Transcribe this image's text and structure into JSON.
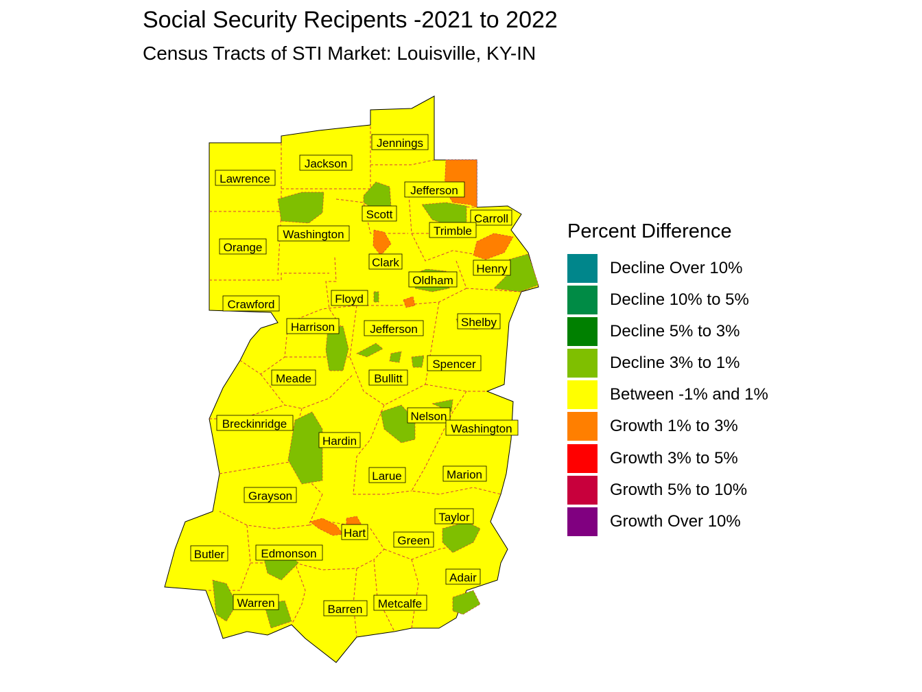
{
  "title": "Social Security Recipents -2021 to 2022",
  "subtitle": "Census Tracts of STI Market: Louisville, KY-IN",
  "legend": {
    "title": "Percent Difference",
    "items": [
      {
        "label": "Decline Over 10%",
        "color": "#00868B"
      },
      {
        "label": "Decline 10% to 5%",
        "color": "#008B45"
      },
      {
        "label": "Decline 5% to 3%",
        "color": "#008000"
      },
      {
        "label": "Decline 3% to 1%",
        "color": "#7FBF00"
      },
      {
        "label": "Between -1% and 1%",
        "color": "#FFFF00"
      },
      {
        "label": "Growth 1% to 3%",
        "color": "#FF7F00"
      },
      {
        "label": "Growth 3% to 5%",
        "color": "#FF0000"
      },
      {
        "label": "Growth 5% to 10%",
        "color": "#C8003C"
      },
      {
        "label": "Growth Over 10%",
        "color": "#800080"
      }
    ]
  },
  "colors": {
    "base_fill": "#FFFF00",
    "decline_fill": "#7FBF00",
    "growth_fill": "#FF7F00",
    "county_border": "#D43A3A",
    "outline": "#000000"
  },
  "counties": [
    "Jennings",
    "Jackson",
    "Lawrence",
    "Jefferson",
    "Scott",
    "Carroll",
    "Washington",
    "Trimble",
    "Orange",
    "Clark",
    "Henry",
    "Oldham",
    "Crawford",
    "Floyd",
    "Shelby",
    "Harrison",
    "Jefferson",
    "Spencer",
    "Meade",
    "Bullitt",
    "Nelson",
    "Breckinridge",
    "Washington",
    "Hardin",
    "Larue",
    "Marion",
    "Grayson",
    "Taylor",
    "Hart",
    "Green",
    "Butler",
    "Edmonson",
    "Adair",
    "Warren",
    "Metcalfe",
    "Barren"
  ]
}
